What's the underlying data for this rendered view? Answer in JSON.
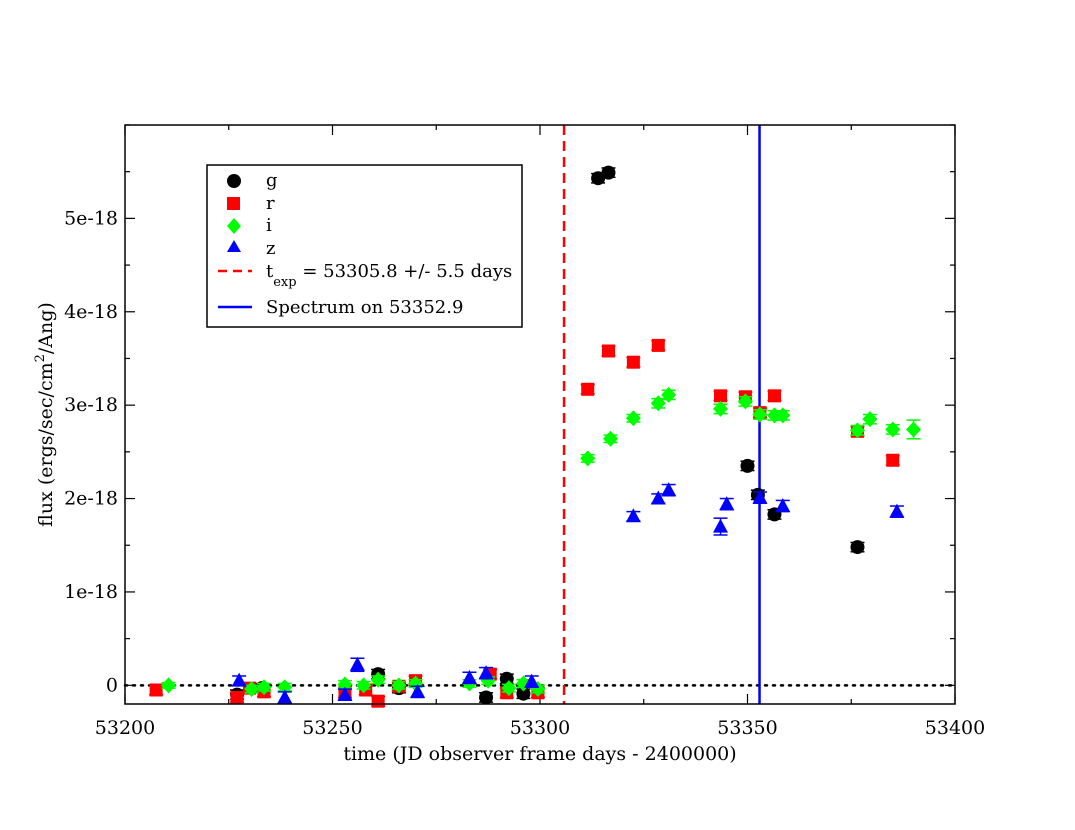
{
  "chart_data": {
    "type": "scatter",
    "xlabel": "time (JD observer frame days - 2400000)",
    "ylabel": "flux (ergs/sec/cm^2/Ang)",
    "ylabel_parts": {
      "pre": "flux (ergs/sec/cm",
      "sup": "2",
      "post": "/Ang)"
    },
    "xlim": [
      53200,
      53400
    ],
    "ylim": [
      -2e-19,
      6e-18
    ],
    "x_ticks": [
      {
        "value": 53200,
        "label": "53200"
      },
      {
        "value": 53250,
        "label": "53250"
      },
      {
        "value": 53300,
        "label": "53300"
      },
      {
        "value": 53350,
        "label": "53350"
      },
      {
        "value": 53400,
        "label": "53400"
      }
    ],
    "x_minor_step": 25,
    "y_ticks": [
      {
        "value": 0,
        "label": "0"
      },
      {
        "value": 1e-18,
        "label": "1e-18"
      },
      {
        "value": 2e-18,
        "label": "2e-18"
      },
      {
        "value": 3e-18,
        "label": "3e-18"
      },
      {
        "value": 4e-18,
        "label": "4e-18"
      },
      {
        "value": 5e-18,
        "label": "5e-18"
      }
    ],
    "y_minor_step": 5e-19,
    "zero_line": {
      "style": "dotted",
      "color": "#000000"
    },
    "vlines": [
      {
        "name": "texp",
        "x": 53305.8,
        "color": "#ff0000",
        "style": "dashed"
      },
      {
        "name": "spectrum",
        "x": 53352.9,
        "color": "#0000ff",
        "style": "solid"
      }
    ],
    "legend": {
      "position": "top-left",
      "entries": [
        {
          "marker": "circle",
          "color": "#000000",
          "label": "g"
        },
        {
          "marker": "square",
          "color": "#ff0000",
          "label": "r"
        },
        {
          "marker": "diamond",
          "color": "#00ff00",
          "label": "i"
        },
        {
          "marker": "triangle",
          "color": "#0000ff",
          "label": "z"
        },
        {
          "marker": "dashed-line",
          "color": "#ff0000",
          "label_parts": {
            "t": "t",
            "sub": "exp",
            "rest": " = 53305.8 +/- 5.5 days"
          }
        },
        {
          "marker": "solid-line",
          "color": "#0000ff",
          "label": "Spectrum on 53352.9"
        }
      ]
    },
    "series": [
      {
        "name": "g",
        "marker": "circle",
        "color": "#000000",
        "points": [
          {
            "x": 53227,
            "y": -1e-19,
            "err": 5e-20
          },
          {
            "x": 53233,
            "y": -3e-20,
            "err": 5e-20
          },
          {
            "x": 53261,
            "y": 1.2e-19,
            "err": 5e-20
          },
          {
            "x": 53266,
            "y": -3e-20,
            "err": 5e-20
          },
          {
            "x": 53287,
            "y": -1.3e-19,
            "err": 5e-20
          },
          {
            "x": 53292,
            "y": 7e-20,
            "err": 5e-20
          },
          {
            "x": 53296,
            "y": -9e-20,
            "err": 5e-20
          },
          {
            "x": 53314,
            "y": 5.43e-18,
            "err": 5e-20
          },
          {
            "x": 53316.5,
            "y": 5.49e-18,
            "err": 5e-20
          },
          {
            "x": 53350,
            "y": 2.35e-18,
            "err": 5e-20
          },
          {
            "x": 53352.5,
            "y": 2.04e-18,
            "err": 5e-20
          },
          {
            "x": 53356.5,
            "y": 1.83e-18,
            "err": 5e-20
          },
          {
            "x": 53376.5,
            "y": 1.48e-18,
            "err": 5e-20
          }
        ]
      },
      {
        "name": "r",
        "marker": "square",
        "color": "#ff0000",
        "points": [
          {
            "x": 53207.5,
            "y": -5e-20,
            "err": 5e-20
          },
          {
            "x": 53227,
            "y": -1.3e-19,
            "err": 5e-20
          },
          {
            "x": 53230,
            "y": -3e-20,
            "err": 5e-20
          },
          {
            "x": 53233.5,
            "y": -7e-20,
            "err": 5e-20
          },
          {
            "x": 53253,
            "y": -8e-20,
            "err": 5e-20
          },
          {
            "x": 53258,
            "y": -5e-20,
            "err": 5e-20
          },
          {
            "x": 53261,
            "y": -1.7e-19,
            "err": 5e-20
          },
          {
            "x": 53266,
            "y": -1e-20,
            "err": 5e-20
          },
          {
            "x": 53270,
            "y": 5e-20,
            "err": 5e-20
          },
          {
            "x": 53288,
            "y": 1.2e-19,
            "err": 5e-20
          },
          {
            "x": 53292,
            "y": -8e-20,
            "err": 5e-20
          },
          {
            "x": 53299.5,
            "y": -8e-20,
            "err": 5e-20
          },
          {
            "x": 53311.5,
            "y": 3.17e-18,
            "err": 5e-20
          },
          {
            "x": 53316.5,
            "y": 3.58e-18,
            "err": 5e-20
          },
          {
            "x": 53322.5,
            "y": 3.46e-18,
            "err": 5e-20
          },
          {
            "x": 53328.5,
            "y": 3.64e-18,
            "err": 5e-20
          },
          {
            "x": 53343.5,
            "y": 3.1e-18,
            "err": 5e-20
          },
          {
            "x": 53349.5,
            "y": 3.09e-18,
            "err": 5e-20
          },
          {
            "x": 53353,
            "y": 2.92e-18,
            "err": 5e-20
          },
          {
            "x": 53356.5,
            "y": 3.1e-18,
            "err": 5e-20
          },
          {
            "x": 53376.5,
            "y": 2.72e-18,
            "err": 5e-20
          },
          {
            "x": 53385,
            "y": 2.41e-18,
            "err": 5e-20
          }
        ]
      },
      {
        "name": "i",
        "marker": "diamond",
        "color": "#00ff00",
        "points": [
          {
            "x": 53210.5,
            "y": 0.0,
            "err": 3e-20
          },
          {
            "x": 53230.5,
            "y": -4e-20,
            "err": 4e-20
          },
          {
            "x": 53233.5,
            "y": -2e-20,
            "err": 4e-20
          },
          {
            "x": 53238.5,
            "y": -2e-20,
            "err": 4e-20
          },
          {
            "x": 53253,
            "y": 1e-20,
            "err": 4e-20
          },
          {
            "x": 53257.5,
            "y": 0.0,
            "err": 4e-20
          },
          {
            "x": 53261,
            "y": 6e-20,
            "err": 4e-20
          },
          {
            "x": 53266,
            "y": 0.0,
            "err": 4e-20
          },
          {
            "x": 53270,
            "y": 2e-20,
            "err": 4e-20
          },
          {
            "x": 53283,
            "y": 2e-20,
            "err": 4e-20
          },
          {
            "x": 53287.5,
            "y": 5e-20,
            "err": 4e-20
          },
          {
            "x": 53292.5,
            "y": -3e-20,
            "err": 4e-20
          },
          {
            "x": 53296,
            "y": 2e-20,
            "err": 4e-20
          },
          {
            "x": 53299.5,
            "y": -4e-20,
            "err": 4e-20
          },
          {
            "x": 53311.5,
            "y": 2.43e-18,
            "err": 4e-20
          },
          {
            "x": 53317,
            "y": 2.64e-18,
            "err": 4e-20
          },
          {
            "x": 53322.5,
            "y": 2.86e-18,
            "err": 4e-20
          },
          {
            "x": 53328.5,
            "y": 3.02e-18,
            "err": 5e-20
          },
          {
            "x": 53331,
            "y": 3.11e-18,
            "err": 5e-20
          },
          {
            "x": 53343.5,
            "y": 2.96e-18,
            "err": 5e-20
          },
          {
            "x": 53349.5,
            "y": 3.04e-18,
            "err": 5e-20
          },
          {
            "x": 53353,
            "y": 2.9e-18,
            "err": 5e-20
          },
          {
            "x": 53356.5,
            "y": 2.89e-18,
            "err": 5e-20
          },
          {
            "x": 53358.5,
            "y": 2.89e-18,
            "err": 5e-20
          },
          {
            "x": 53376.5,
            "y": 2.73e-18,
            "err": 5e-20
          },
          {
            "x": 53379.5,
            "y": 2.85e-18,
            "err": 5e-20
          },
          {
            "x": 53385,
            "y": 2.74e-18,
            "err": 5e-20
          },
          {
            "x": 53390,
            "y": 2.74e-18,
            "err": 1e-19
          }
        ]
      },
      {
        "name": "z",
        "marker": "triangle",
        "color": "#0000ff",
        "points": [
          {
            "x": 53227.5,
            "y": 5e-20,
            "err": 5e-20
          },
          {
            "x": 53238.5,
            "y": -1.3e-19,
            "err": 6e-20
          },
          {
            "x": 53253,
            "y": -1e-19,
            "err": 6e-20
          },
          {
            "x": 53256,
            "y": 2.2e-19,
            "err": 7e-20
          },
          {
            "x": 53270.5,
            "y": -7e-20,
            "err": 6e-20
          },
          {
            "x": 53283,
            "y": 8e-20,
            "err": 6e-20
          },
          {
            "x": 53287,
            "y": 1.3e-19,
            "err": 6e-20
          },
          {
            "x": 53298,
            "y": 4e-20,
            "err": 6e-20
          },
          {
            "x": 53322.5,
            "y": 1.81e-18,
            "err": 5e-20
          },
          {
            "x": 53328.5,
            "y": 2e-18,
            "err": 5e-20
          },
          {
            "x": 53331,
            "y": 2.09e-18,
            "err": 6e-20
          },
          {
            "x": 53343.5,
            "y": 1.7e-18,
            "err": 9e-20
          },
          {
            "x": 53345,
            "y": 1.94e-18,
            "err": 6e-20
          },
          {
            "x": 53353,
            "y": 2.01e-18,
            "err": 6e-20
          },
          {
            "x": 53358.5,
            "y": 1.92e-18,
            "err": 6e-20
          },
          {
            "x": 53386,
            "y": 1.86e-18,
            "err": 6e-20
          }
        ]
      }
    ]
  }
}
